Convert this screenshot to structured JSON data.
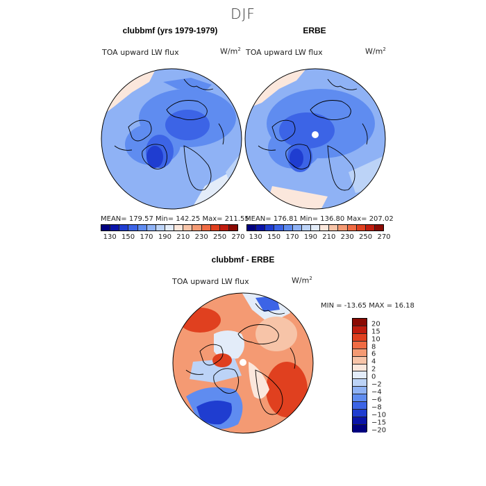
{
  "title": "DJF",
  "panels": [
    {
      "title": "clubbmf (yrs 1979-1979)",
      "variable": "TOA upward LW flux",
      "units_base": "W/m",
      "units_exp": "2",
      "stats": "MEAN= 179.57   Min= 142.25   Max= 211.55"
    },
    {
      "title": "ERBE",
      "variable": "TOA upward LW flux",
      "units_base": "W/m",
      "units_exp": "2",
      "stats": "MEAN= 176.81   Min= 136.80   Max= 207.02"
    },
    {
      "title": "clubbmf - ERBE",
      "variable": "TOA upward LW flux",
      "units_base": "W/m",
      "units_exp": "2",
      "stats": "MIN = -13.65  MAX =  16.18"
    }
  ],
  "colorbar_abs": {
    "ticks": [
      "130",
      "150",
      "170",
      "190",
      "210",
      "230",
      "250",
      "270"
    ],
    "colors": [
      "#00007f",
      "#0a14a8",
      "#1f3dd0",
      "#3c64e6",
      "#5f8cf0",
      "#8fb2f5",
      "#bcd3f7",
      "#e3ecf9",
      "#fbe7dc",
      "#f7c4a8",
      "#f49a73",
      "#f06b43",
      "#e0401f",
      "#c01c0e",
      "#8a0a03"
    ]
  },
  "colorbar_diff": {
    "ticks": [
      "20",
      "15",
      "10",
      "8",
      "6",
      "4",
      "2",
      "0",
      "−2",
      "−4",
      "−6",
      "−8",
      "−10",
      "−15",
      "−20"
    ],
    "colors": [
      "#8a0a03",
      "#c01c0e",
      "#e0401f",
      "#f06b43",
      "#f49a73",
      "#f7c4a8",
      "#fbe7dc",
      "#e3ecf9",
      "#bcd3f7",
      "#8fb2f5",
      "#5f8cf0",
      "#3c64e6",
      "#1f3dd0",
      "#0a14a8",
      "#00007f"
    ]
  }
}
